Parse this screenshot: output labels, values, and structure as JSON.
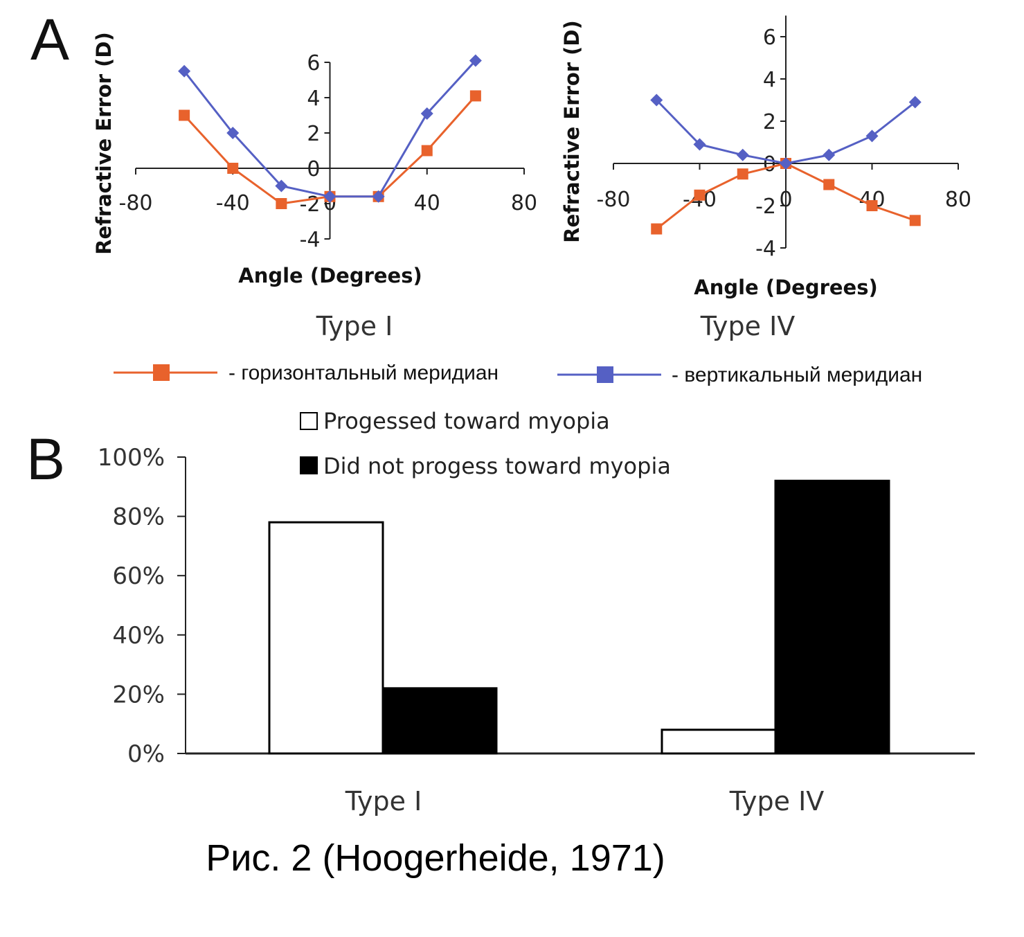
{
  "colors": {
    "horizontal": "#e8622c",
    "vertical": "#5560c4",
    "axis": "#222222",
    "bar_outline": "#000000"
  },
  "legend_a": {
    "horizontal_label": "- горизонтальный меридиан",
    "vertical_label": "- вертикальный меридиан"
  },
  "caption": "Рис. 2 (Hoogerheide, 1971)",
  "chart_data": [
    {
      "panel": "A",
      "type": "line",
      "subtitle": "Type I",
      "xlabel": "Angle (Degrees)",
      "ylabel": "Refractive Error (D)",
      "xlim": [
        -80,
        80
      ],
      "ylim": [
        -4,
        6
      ],
      "xticks": [
        -80,
        -40,
        0,
        40,
        80
      ],
      "xtick_labels": [
        "-80",
        "-40",
        "0",
        "40",
        "80"
      ],
      "yticks": [
        -4,
        -2,
        0,
        2,
        4,
        6
      ],
      "ytick_labels": [
        "-4",
        "-2",
        "0",
        "2",
        "4",
        "6"
      ],
      "series": [
        {
          "name": "горизонтальный меридиан",
          "key": "horizontal",
          "marker": "square",
          "x": [
            -60,
            -40,
            -20,
            0,
            20,
            40,
            60
          ],
          "y": [
            3.0,
            0.0,
            -2.0,
            -1.6,
            -1.6,
            1.0,
            4.1
          ]
        },
        {
          "name": "вертикальный меридиан",
          "key": "vertical",
          "marker": "diamond",
          "x": [
            -60,
            -40,
            -20,
            0,
            20,
            40,
            60
          ],
          "y": [
            5.5,
            2.0,
            -1.0,
            -1.6,
            -1.6,
            3.1,
            6.1
          ]
        }
      ]
    },
    {
      "panel": "A",
      "type": "line",
      "subtitle": "Type IV",
      "xlabel": "Angle (Degrees)",
      "ylabel": "Refractive Error (D)",
      "xlim": [
        -80,
        80
      ],
      "ylim": [
        -4,
        7
      ],
      "xticks": [
        -80,
        -40,
        0,
        40,
        80
      ],
      "xtick_labels": [
        "-80",
        "-40",
        "0",
        "40",
        "80"
      ],
      "yticks": [
        -4,
        -2,
        0,
        2,
        4,
        6
      ],
      "ytick_labels": [
        "-4",
        "-2",
        "0",
        "2",
        "4",
        "6"
      ],
      "series": [
        {
          "name": "горизонтальный меридиан",
          "key": "horizontal",
          "marker": "square",
          "x": [
            -60,
            -40,
            -20,
            0,
            20,
            40,
            60
          ],
          "y": [
            -3.1,
            -1.5,
            -0.5,
            0.0,
            -1.0,
            -2.0,
            -2.7
          ]
        },
        {
          "name": "вертикальный меридиан",
          "key": "vertical",
          "marker": "diamond",
          "x": [
            -60,
            -40,
            -20,
            0,
            20,
            40,
            60
          ],
          "y": [
            3.0,
            0.9,
            0.4,
            0.0,
            0.4,
            1.3,
            2.9
          ]
        }
      ]
    },
    {
      "panel": "B",
      "type": "bar",
      "categories": [
        "Type I",
        "Type IV"
      ],
      "ylim": [
        0,
        100
      ],
      "yticks": [
        0,
        20,
        40,
        60,
        80,
        100
      ],
      "ytick_labels": [
        "0%",
        "20%",
        "40%",
        "60%",
        "80%",
        "100%"
      ],
      "series": [
        {
          "name": "Progessed toward myopia",
          "fill": "#ffffff",
          "values": [
            78,
            8
          ]
        },
        {
          "name": "Did not progess toward myopia",
          "fill": "#000000",
          "values": [
            22,
            92
          ]
        }
      ]
    }
  ]
}
